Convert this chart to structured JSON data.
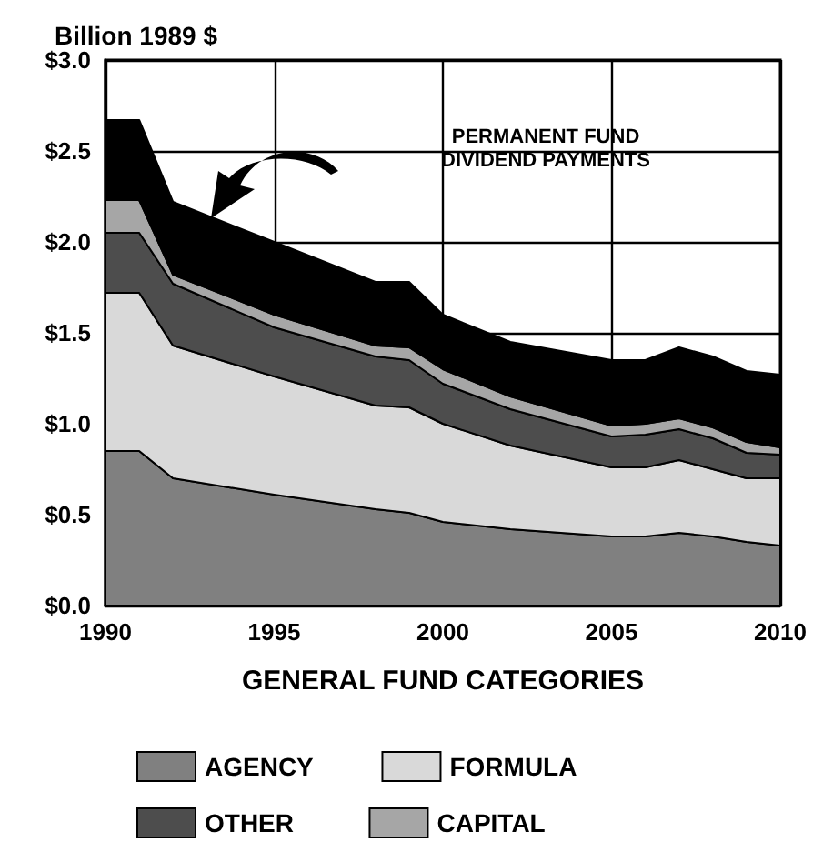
{
  "chart_data": {
    "type": "area",
    "stacked": true,
    "ylabel": "Billion 1989 $",
    "xlabel": "GENERAL FUND CATEGORIES",
    "x": [
      1990,
      1991,
      1992,
      1995,
      1998,
      1999,
      2000,
      2002,
      2005,
      2006,
      2007,
      2008,
      2009,
      2010
    ],
    "series": [
      {
        "name": "AGENCY",
        "color": "#808080",
        "values": [
          0.85,
          0.85,
          0.7,
          0.61,
          0.53,
          0.51,
          0.46,
          0.42,
          0.38,
          0.38,
          0.4,
          0.38,
          0.35,
          0.33
        ]
      },
      {
        "name": "FORMULA",
        "color": "#d9d9d9",
        "values": [
          0.87,
          0.87,
          0.73,
          0.65,
          0.57,
          0.58,
          0.54,
          0.46,
          0.38,
          0.38,
          0.4,
          0.37,
          0.35,
          0.37
        ]
      },
      {
        "name": "OTHER",
        "color": "#4d4d4d",
        "values": [
          0.33,
          0.33,
          0.34,
          0.27,
          0.27,
          0.26,
          0.22,
          0.2,
          0.17,
          0.18,
          0.17,
          0.17,
          0.14,
          0.13
        ]
      },
      {
        "name": "CAPITAL",
        "color": "#a6a6a6",
        "values": [
          0.18,
          0.18,
          0.05,
          0.07,
          0.06,
          0.07,
          0.08,
          0.07,
          0.06,
          0.06,
          0.06,
          0.06,
          0.06,
          0.04
        ]
      },
      {
        "color": "#000000",
        "values": [
          0.44,
          0.44,
          0.4,
          0.4,
          0.35,
          0.36,
          0.3,
          0.3,
          0.36,
          0.35,
          0.39,
          0.39,
          0.39,
          0.4
        ]
      }
    ],
    "annotations": [
      "PERMANENT FUND\nDIVIDEND PAYMENTS"
    ],
    "xlim": [
      1990,
      2010
    ],
    "xticks": [
      1990,
      1995,
      2000,
      2005,
      2010
    ],
    "ylim": [
      0,
      3
    ],
    "yticks": [
      {
        "value": 0,
        "label": "$0.0"
      },
      {
        "value": 0.5,
        "label": "$0.5"
      },
      {
        "value": 1,
        "label": "$1.0"
      },
      {
        "value": 1.5,
        "label": "$1.5"
      },
      {
        "value": 2,
        "label": "$2.0"
      },
      {
        "value": 2.5,
        "label": "$2.5"
      },
      {
        "value": 3,
        "label": "$3.0"
      }
    ],
    "grid": true,
    "legend": "bottom"
  }
}
